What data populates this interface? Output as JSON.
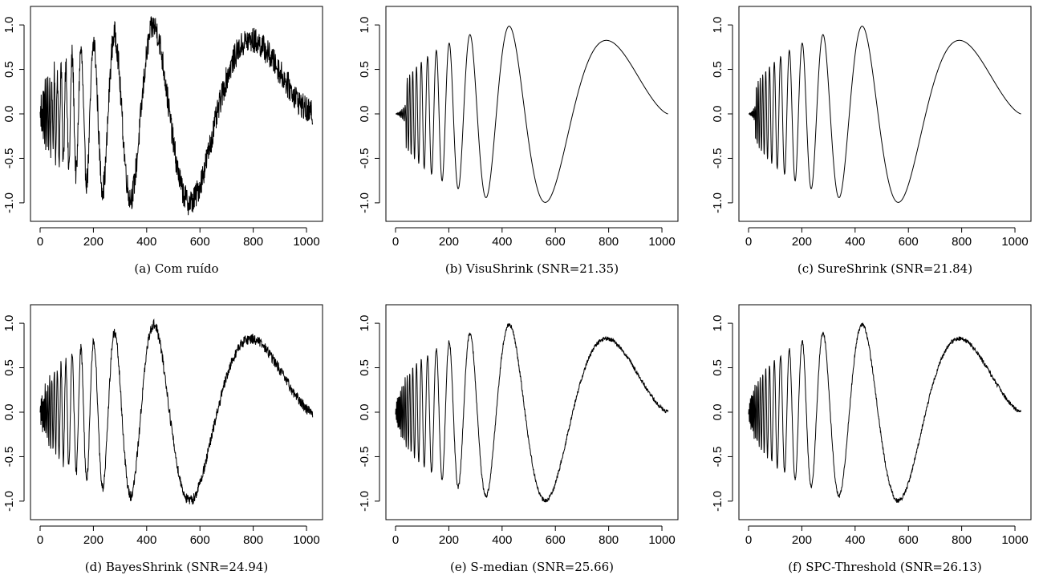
{
  "chart_data": [
    {
      "type": "line",
      "caption": "(a) Com ruído",
      "series": [
        {
          "signal": "doppler",
          "noise": "high",
          "values_note": ""
        }
      ],
      "xlim": [
        0,
        1024
      ],
      "ylim": [
        -1.1,
        1.1
      ],
      "x_ticks": [
        "0",
        "200",
        "400",
        "600",
        "800",
        "1000"
      ],
      "y_ticks": [
        "-1.0",
        "-0.5",
        "0.0",
        "0.5",
        "1.0"
      ],
      "noise_level": 0.05
    },
    {
      "type": "line",
      "caption": "(b) VisuShrink (SNR=21.35)",
      "xlim": [
        0,
        1024
      ],
      "ylim": [
        -1.1,
        1.1
      ],
      "x_ticks": [
        "0",
        "200",
        "400",
        "600",
        "800",
        "1000"
      ],
      "y_ticks": [
        "-1.0",
        "-0.5",
        "0.0",
        "0.5",
        "1.0"
      ],
      "noise_level": 0.0,
      "smooth_start": 40
    },
    {
      "type": "line",
      "caption": "(c) SureShrink (SNR=21.84)",
      "xlim": [
        0,
        1024
      ],
      "ylim": [
        -1.1,
        1.1
      ],
      "x_ticks": [
        "0",
        "200",
        "400",
        "600",
        "800",
        "1000"
      ],
      "y_ticks": [
        "-1.0",
        "-0.5",
        "0.0",
        "0.5",
        "1.0"
      ],
      "noise_level": 0.0,
      "smooth_start": 25
    },
    {
      "type": "line",
      "caption": "(d) BayesShrink (SNR=24.94)",
      "xlim": [
        0,
        1024
      ],
      "ylim": [
        -1.1,
        1.1
      ],
      "x_ticks": [
        "0",
        "200",
        "400",
        "600",
        "800",
        "1000"
      ],
      "y_ticks": [
        "-1.0",
        "-0.5",
        "0.0",
        "0.5",
        "1.0"
      ],
      "noise_level": 0.02
    },
    {
      "type": "line",
      "caption": "(e) S-median (SNR=25.66)",
      "xlim": [
        0,
        1024
      ],
      "ylim": [
        -1.1,
        1.1
      ],
      "x_ticks": [
        "0",
        "200",
        "400",
        "600",
        "800",
        "1000"
      ],
      "y_ticks": [
        "-1.0",
        "-0.5",
        "0.0",
        "0.5",
        "1.0"
      ],
      "noise_level": 0.008
    },
    {
      "type": "line",
      "caption": "(f) SPC-Threshold (SNR=26.13)",
      "xlim": [
        0,
        1024
      ],
      "ylim": [
        -1.1,
        1.1
      ],
      "x_ticks": [
        "0",
        "200",
        "400",
        "600",
        "800",
        "1000"
      ],
      "y_ticks": [
        "-1.0",
        "-0.5",
        "0.0",
        "0.5",
        "1.0"
      ],
      "noise_level": 0.008
    }
  ]
}
